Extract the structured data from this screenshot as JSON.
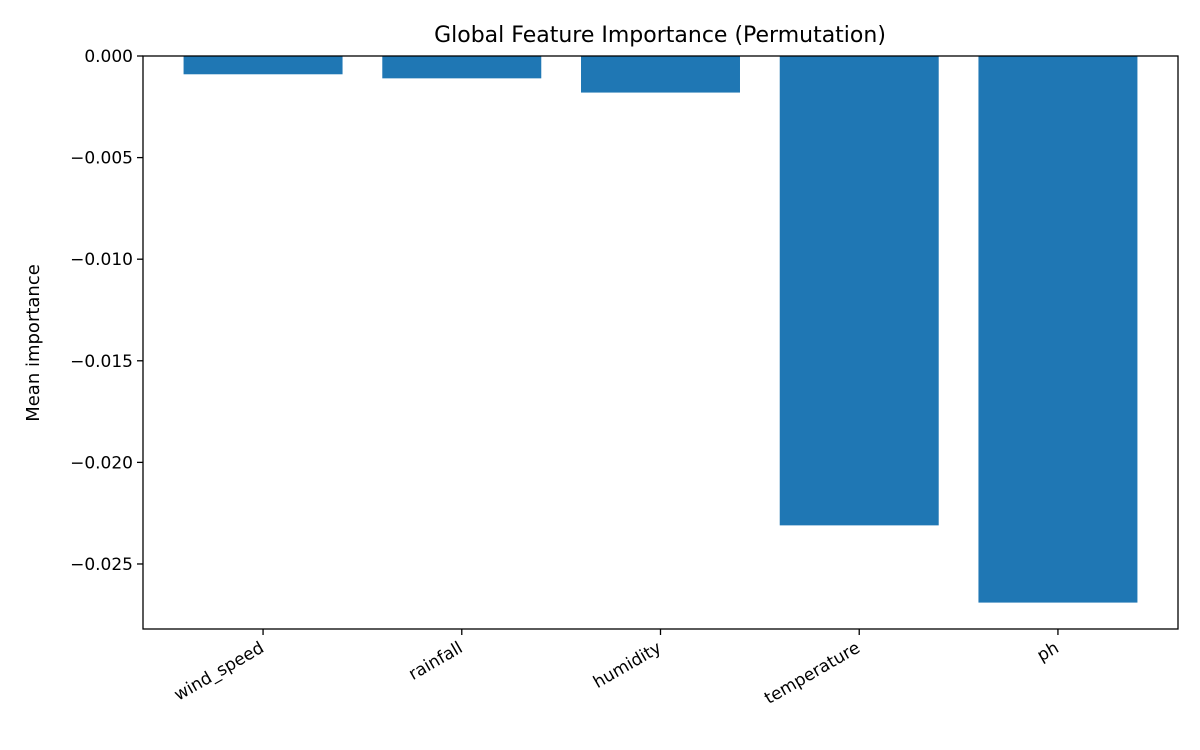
{
  "chart_data": {
    "type": "bar",
    "title": "Global Feature Importance (Permutation)",
    "xlabel": "",
    "ylabel": "Mean importance",
    "categories": [
      "wind_speed",
      "rainfall",
      "humidity",
      "temperature",
      "ph"
    ],
    "values": [
      -0.0009,
      -0.0011,
      -0.0018,
      -0.0231,
      -0.0269
    ],
    "ylim": [
      -0.0282,
      0.0
    ],
    "yticks": [
      0.0,
      -0.005,
      -0.01,
      -0.015,
      -0.02,
      -0.025
    ],
    "ytick_labels": [
      "0.000",
      "−0.005",
      "−0.010",
      "−0.015",
      "−0.020",
      "−0.025"
    ],
    "bar_color": "#1f77b4",
    "grid": false,
    "legend": "none"
  }
}
